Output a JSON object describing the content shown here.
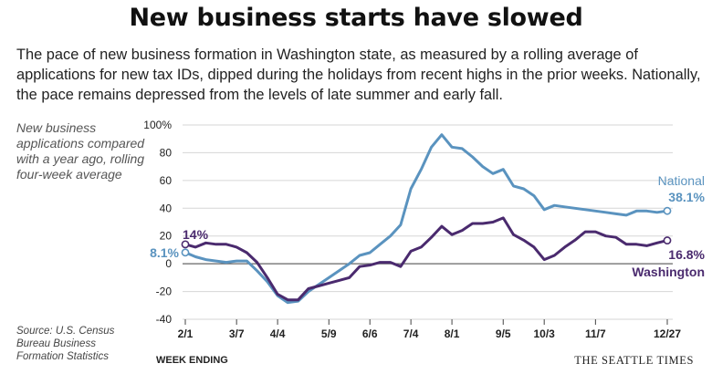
{
  "header": {
    "title": "New business starts have slowed",
    "subtitle": "The pace of new business formation in Washington state, as measured by a rolling average of applications for new tax IDs, dipped during the holidays from recent highs in the prior weeks. Nationally, the pace remains depressed from the levels of late summer and early fall."
  },
  "y_note": "New business applications compared with a year ago, rolling four-week average",
  "source": "Source: U.S. Census Bureau Business Formation Statistics",
  "x_title": "WEEK ENDING",
  "credit": "THE SEATTLE TIMES",
  "colors": {
    "national": "#5a93bf",
    "washington": "#4a2a6e",
    "grid": "#d6d6d6",
    "zero": "#666666"
  },
  "chart_data": {
    "type": "line",
    "x": [
      "2/1",
      "2/8",
      "2/15",
      "2/22",
      "2/29",
      "3/7",
      "3/14",
      "3/21",
      "3/28",
      "4/4",
      "4/11",
      "4/18",
      "4/25",
      "5/2",
      "5/9",
      "5/16",
      "5/23",
      "5/30",
      "6/6",
      "6/13",
      "6/20",
      "6/27",
      "7/4",
      "7/11",
      "7/18",
      "7/25",
      "8/1",
      "8/8",
      "8/15",
      "8/22",
      "8/29",
      "9/5",
      "9/12",
      "9/19",
      "9/26",
      "10/3",
      "10/10",
      "10/17",
      "10/24",
      "10/31",
      "11/7",
      "11/14",
      "11/21",
      "11/28",
      "12/5",
      "12/12",
      "12/20",
      "12/27"
    ],
    "x_ticks": [
      "2/1",
      "3/7",
      "4/4",
      "5/9",
      "6/6",
      "7/4",
      "8/1",
      "9/5",
      "10/3",
      "11/7",
      "12/27"
    ],
    "ylim": [
      -40,
      100
    ],
    "yticks": [
      -40,
      -20,
      0,
      20,
      40,
      60,
      80,
      100
    ],
    "ytick_labels": [
      "-40",
      "-20",
      "0",
      "20",
      "40",
      "60",
      "80",
      "100%"
    ],
    "grid": true,
    "series": [
      {
        "name": "National",
        "values": [
          8.1,
          5,
          3,
          2,
          1,
          2,
          2,
          -5,
          -13,
          -23,
          -28,
          -27,
          -20,
          -15,
          -10,
          -5,
          0,
          6,
          8,
          14,
          20,
          28,
          54,
          68,
          84,
          93,
          84,
          83,
          77,
          70,
          65,
          68,
          56,
          54,
          49,
          39,
          42,
          41,
          40,
          39,
          38,
          37,
          36,
          35,
          38,
          38,
          37,
          38.1
        ]
      },
      {
        "name": "Washington",
        "values": [
          14,
          12,
          15,
          14,
          14,
          12,
          8,
          1,
          -10,
          -22,
          -26,
          -26,
          -18,
          -16,
          -14,
          -12,
          -10,
          -2,
          -1,
          1,
          1,
          -2,
          9,
          12,
          19,
          27,
          21,
          24,
          29,
          29,
          30,
          33,
          21,
          17,
          12,
          3,
          6,
          12,
          17,
          23,
          23,
          20,
          19,
          14,
          14,
          13,
          15,
          16.8
        ]
      }
    ],
    "annotations": {
      "national_name": "National",
      "national_last": "38.1%",
      "washington_name": "Washington",
      "washington_last": "16.8%",
      "washington_first": "14%",
      "national_first": "8.1%"
    }
  }
}
